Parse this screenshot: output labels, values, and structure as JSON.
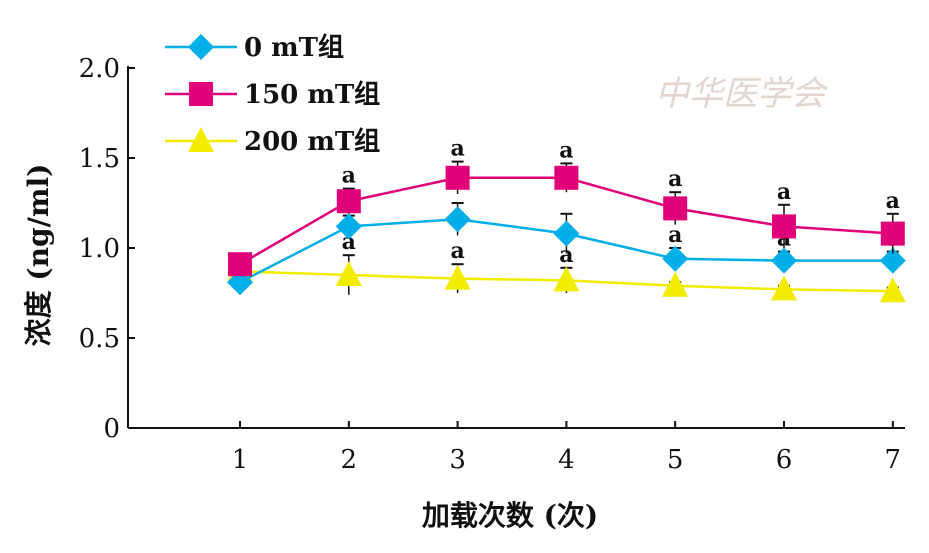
{
  "chart_data": {
    "type": "line",
    "xlabel": "加载次数 (次)",
    "ylabel": "浓度 (ng/ml)",
    "x": [
      1,
      2,
      3,
      4,
      5,
      6,
      7
    ],
    "ylim": [
      0,
      2.0
    ],
    "yticks": [
      "0",
      "0.5",
      "1.0",
      "1.5",
      "2.0"
    ],
    "xticks": [
      "1",
      "2",
      "3",
      "4",
      "5",
      "6",
      "7"
    ],
    "grid": false,
    "legend_position": "top-left",
    "series": [
      {
        "name": "0 mT组",
        "color": "#00aee8",
        "marker": "diamond",
        "values": [
          0.81,
          1.12,
          1.16,
          1.08,
          0.94,
          0.93,
          0.93
        ],
        "error": [
          0.02,
          0.06,
          0.09,
          0.11,
          0.06,
          0.05,
          0.05
        ],
        "annotations": [
          "",
          "",
          "",
          "",
          "a",
          "a",
          "a"
        ]
      },
      {
        "name": "150 mT组",
        "color": "#e0007a",
        "marker": "square",
        "values": [
          0.91,
          1.26,
          1.39,
          1.39,
          1.22,
          1.12,
          1.08
        ],
        "error": [
          0.03,
          0.07,
          0.09,
          0.08,
          0.09,
          0.12,
          0.11
        ],
        "annotations": [
          "",
          "a",
          "a",
          "a",
          "a",
          "a",
          "a"
        ]
      },
      {
        "name": "200 mT组",
        "color": "#f2ec00",
        "marker": "triangle",
        "values": [
          0.87,
          0.85,
          0.83,
          0.82,
          0.79,
          0.77,
          0.76
        ],
        "error": [
          0.02,
          0.11,
          0.08,
          0.07,
          0.02,
          0.02,
          0.02
        ],
        "annotations": [
          "",
          "a",
          "a",
          "a",
          "",
          "",
          ""
        ]
      }
    ]
  },
  "watermark": "中华医学会"
}
